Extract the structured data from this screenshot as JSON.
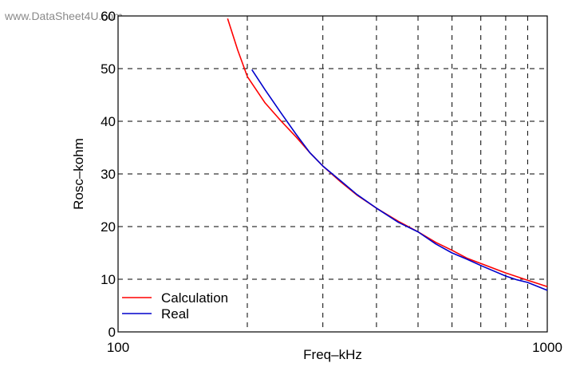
{
  "watermark": "www.DataSheet4U.com",
  "chart_data": {
    "type": "line",
    "title": "",
    "xlabel": "Freq–kHz",
    "ylabel": "Rosc–kohm",
    "xscale": "log",
    "xlim": [
      100,
      1000
    ],
    "ylim": [
      0,
      60
    ],
    "x_tick_labels": [
      {
        "value": 100,
        "label": "100"
      },
      {
        "value": 1000,
        "label": "1000"
      }
    ],
    "y_tick_labels": [
      {
        "value": 0,
        "label": "0"
      },
      {
        "value": 10,
        "label": "10"
      },
      {
        "value": 20,
        "label": "20"
      },
      {
        "value": 30,
        "label": "30"
      },
      {
        "value": 40,
        "label": "40"
      },
      {
        "value": 50,
        "label": "50"
      },
      {
        "value": 60,
        "label": "60"
      }
    ],
    "x_gridlines": [
      200,
      300,
      400,
      500,
      600,
      700,
      800,
      900
    ],
    "y_gridlines": [
      10,
      20,
      30,
      40,
      50
    ],
    "grid": "dashed",
    "legend_position": "bottom-left",
    "series": [
      {
        "name": "Calculation",
        "color": "#ff0000",
        "x": [
          180,
          190,
          200,
          220,
          240,
          260,
          280,
          300,
          330,
          360,
          400,
          450,
          500,
          550,
          600,
          650,
          700,
          800,
          900,
          1000
        ],
        "y": [
          59.5,
          53.5,
          48.5,
          43.5,
          40.0,
          37.0,
          34.0,
          31.5,
          28.5,
          26.0,
          23.5,
          21.0,
          19.0,
          17.0,
          15.5,
          14.0,
          13.0,
          11.2,
          9.8,
          8.6
        ]
      },
      {
        "name": "Real",
        "color": "#0000cc",
        "x": [
          205,
          220,
          240,
          260,
          280,
          300,
          330,
          360,
          400,
          450,
          500,
          550,
          600,
          650,
          700,
          800,
          850,
          900,
          1000
        ],
        "y": [
          49.8,
          46.0,
          41.5,
          37.5,
          34.0,
          31.5,
          28.7,
          26.1,
          23.5,
          20.8,
          19.0,
          16.7,
          15.0,
          13.8,
          12.6,
          10.6,
          9.9,
          9.4,
          7.9
        ]
      }
    ]
  }
}
